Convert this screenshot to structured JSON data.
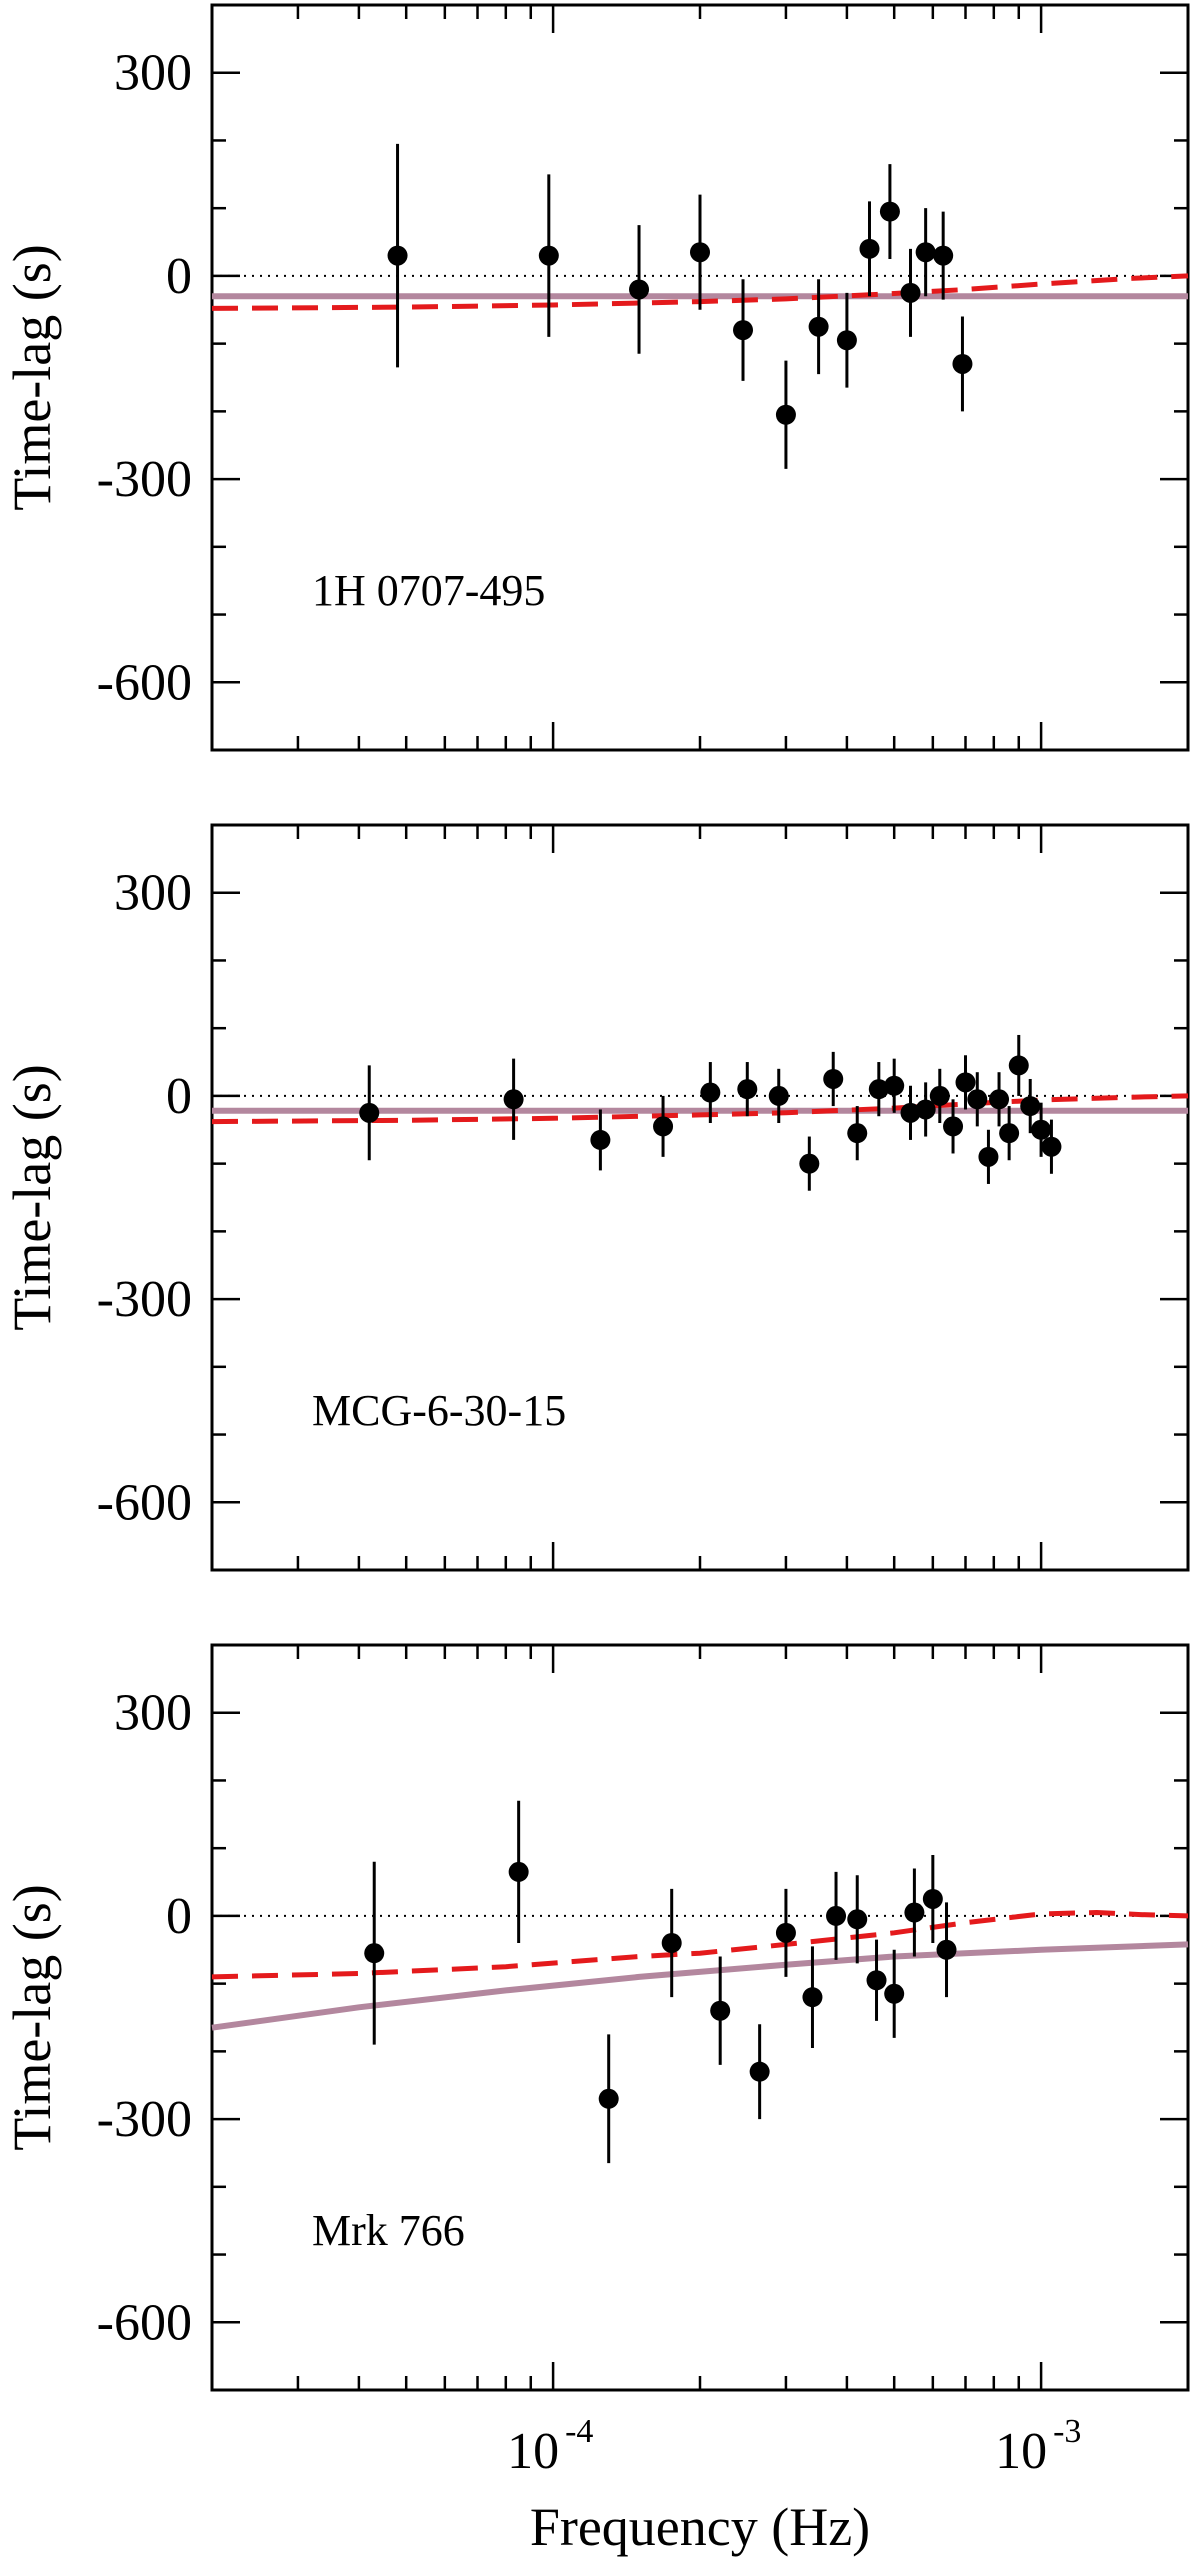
{
  "chart_data": {
    "type": "scatter",
    "xscale": "log",
    "xlim": [
      2e-05,
      0.002
    ],
    "ylim": [
      -700,
      400
    ],
    "xlabel": "Frequency (Hz)",
    "ylabel": "Time-lag (s)",
    "yticks": [
      "300",
      "0",
      "-300",
      "-600"
    ],
    "xticks": [
      {
        "base": "10",
        "exp": "-4"
      },
      {
        "base": "10",
        "exp": "-3"
      }
    ],
    "colors": {
      "dashed_model": "#e41a1c",
      "solid_model": "#b3879e",
      "points": "#000000"
    },
    "panels": [
      {
        "label": "1H 0707-495",
        "points": [
          {
            "x": 4.8e-05,
            "y": 30,
            "err": 165
          },
          {
            "x": 9.8e-05,
            "y": 30,
            "err": 120
          },
          {
            "x": 0.00015,
            "y": -20,
            "err": 95
          },
          {
            "x": 0.0002,
            "y": 35,
            "err": 85
          },
          {
            "x": 0.000245,
            "y": -80,
            "err": 75
          },
          {
            "x": 0.0003,
            "y": -205,
            "err": 80
          },
          {
            "x": 0.00035,
            "y": -75,
            "err": 70
          },
          {
            "x": 0.0004,
            "y": -95,
            "err": 70
          },
          {
            "x": 0.000445,
            "y": 40,
            "err": 70
          },
          {
            "x": 0.00049,
            "y": 95,
            "err": 70
          },
          {
            "x": 0.00054,
            "y": -25,
            "err": 65
          },
          {
            "x": 0.00058,
            "y": 35,
            "err": 65
          },
          {
            "x": 0.00063,
            "y": 30,
            "err": 65
          },
          {
            "x": 0.00069,
            "y": -130,
            "err": 70
          }
        ],
        "dashed_model": [
          {
            "x": 2e-05,
            "y": -48
          },
          {
            "x": 5e-05,
            "y": -46
          },
          {
            "x": 0.0001,
            "y": -43
          },
          {
            "x": 0.0002,
            "y": -38
          },
          {
            "x": 0.0003,
            "y": -34
          },
          {
            "x": 0.0005,
            "y": -26
          },
          {
            "x": 0.0007,
            "y": -20
          },
          {
            "x": 0.001,
            "y": -12
          },
          {
            "x": 0.0015,
            "y": -4
          },
          {
            "x": 0.002,
            "y": 0
          }
        ],
        "solid_model": [
          {
            "x": 2e-05,
            "y": -30
          },
          {
            "x": 0.002,
            "y": -30
          }
        ]
      },
      {
        "label": "MCG-6-30-15",
        "points": [
          {
            "x": 4.2e-05,
            "y": -25,
            "err": 70
          },
          {
            "x": 8.3e-05,
            "y": -5,
            "err": 60
          },
          {
            "x": 0.000125,
            "y": -65,
            "err": 45
          },
          {
            "x": 0.000168,
            "y": -45,
            "err": 45
          },
          {
            "x": 0.00021,
            "y": 5,
            "err": 45
          },
          {
            "x": 0.00025,
            "y": 10,
            "err": 40
          },
          {
            "x": 0.00029,
            "y": 0,
            "err": 40
          },
          {
            "x": 0.000335,
            "y": -100,
            "err": 40
          },
          {
            "x": 0.000375,
            "y": 25,
            "err": 40
          },
          {
            "x": 0.00042,
            "y": -55,
            "err": 40
          },
          {
            "x": 0.000465,
            "y": 10,
            "err": 40
          },
          {
            "x": 0.0005,
            "y": 15,
            "err": 40
          },
          {
            "x": 0.00054,
            "y": -25,
            "err": 40
          },
          {
            "x": 0.00058,
            "y": -20,
            "err": 40
          },
          {
            "x": 0.00062,
            "y": 0,
            "err": 40
          },
          {
            "x": 0.00066,
            "y": -45,
            "err": 40
          },
          {
            "x": 0.0007,
            "y": 20,
            "err": 40
          },
          {
            "x": 0.00074,
            "y": -5,
            "err": 40
          },
          {
            "x": 0.00078,
            "y": -90,
            "err": 40
          },
          {
            "x": 0.00082,
            "y": -5,
            "err": 40
          },
          {
            "x": 0.00086,
            "y": -55,
            "err": 40
          },
          {
            "x": 0.0009,
            "y": 45,
            "err": 45
          },
          {
            "x": 0.00095,
            "y": -15,
            "err": 40
          },
          {
            "x": 0.001,
            "y": -50,
            "err": 40
          },
          {
            "x": 0.00105,
            "y": -75,
            "err": 40
          }
        ],
        "dashed_model": [
          {
            "x": 2e-05,
            "y": -38
          },
          {
            "x": 5e-05,
            "y": -36
          },
          {
            "x": 0.0001,
            "y": -33
          },
          {
            "x": 0.0002,
            "y": -28
          },
          {
            "x": 0.0003,
            "y": -25
          },
          {
            "x": 0.0005,
            "y": -18
          },
          {
            "x": 0.0007,
            "y": -12
          },
          {
            "x": 0.001,
            "y": -6
          },
          {
            "x": 0.0015,
            "y": -2
          },
          {
            "x": 0.002,
            "y": 0
          }
        ],
        "solid_model": [
          {
            "x": 2e-05,
            "y": -22
          },
          {
            "x": 0.002,
            "y": -22
          }
        ]
      },
      {
        "label": "Mrk 766",
        "points": [
          {
            "x": 4.3e-05,
            "y": -55,
            "err": 135
          },
          {
            "x": 8.5e-05,
            "y": 65,
            "err": 105
          },
          {
            "x": 0.00013,
            "y": -270,
            "err": 95
          },
          {
            "x": 0.000175,
            "y": -40,
            "err": 80
          },
          {
            "x": 0.00022,
            "y": -140,
            "err": 80
          },
          {
            "x": 0.000265,
            "y": -230,
            "err": 70
          },
          {
            "x": 0.0003,
            "y": -25,
            "err": 65
          },
          {
            "x": 0.00034,
            "y": -120,
            "err": 75
          },
          {
            "x": 0.00038,
            "y": 0,
            "err": 65
          },
          {
            "x": 0.00042,
            "y": -5,
            "err": 65
          },
          {
            "x": 0.00046,
            "y": -95,
            "err": 60
          },
          {
            "x": 0.0005,
            "y": -115,
            "err": 65
          },
          {
            "x": 0.00055,
            "y": 5,
            "err": 65
          },
          {
            "x": 0.0006,
            "y": 25,
            "err": 65
          },
          {
            "x": 0.00064,
            "y": -50,
            "err": 70
          }
        ],
        "dashed_model": [
          {
            "x": 2e-05,
            "y": -90
          },
          {
            "x": 4e-05,
            "y": -85
          },
          {
            "x": 8e-05,
            "y": -75
          },
          {
            "x": 0.00015,
            "y": -60
          },
          {
            "x": 0.0002,
            "y": -55
          },
          {
            "x": 0.0003,
            "y": -42
          },
          {
            "x": 0.0005,
            "y": -25
          },
          {
            "x": 0.0007,
            "y": -10
          },
          {
            "x": 0.001,
            "y": 3
          },
          {
            "x": 0.0013,
            "y": 5
          },
          {
            "x": 0.0016,
            "y": 2
          },
          {
            "x": 0.002,
            "y": 0
          }
        ],
        "solid_model": [
          {
            "x": 2e-05,
            "y": -165
          },
          {
            "x": 4e-05,
            "y": -135
          },
          {
            "x": 8e-05,
            "y": -110
          },
          {
            "x": 0.00015,
            "y": -90
          },
          {
            "x": 0.0003,
            "y": -72
          },
          {
            "x": 0.0005,
            "y": -60
          },
          {
            "x": 0.001,
            "y": -50
          },
          {
            "x": 0.002,
            "y": -42
          }
        ]
      }
    ]
  }
}
